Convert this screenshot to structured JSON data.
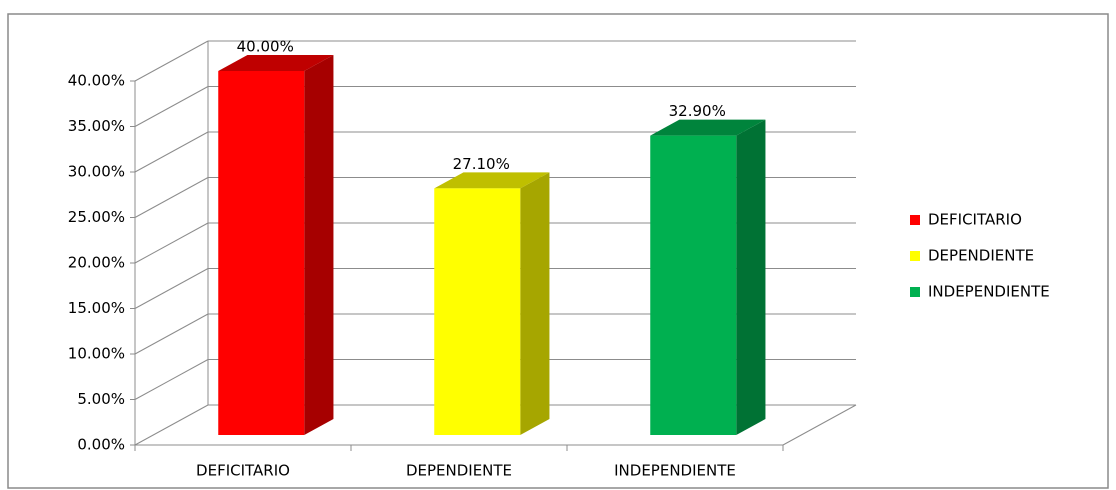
{
  "chart_data": {
    "type": "bar3d",
    "categories": [
      "DEFICITARIO",
      "DEPENDIENTE",
      "INDEPENDIENTE"
    ],
    "values": [
      40,
      27.1,
      32.9
    ],
    "value_labels": [
      "40.00%",
      "27.10%",
      "32.90%"
    ],
    "colors": [
      "#ff0000",
      "#ffff00",
      "#00b050"
    ],
    "ylim": [
      0,
      40
    ],
    "yticks": [
      {
        "value": 0,
        "label": "0.00%"
      },
      {
        "value": 5,
        "label": "5.00%"
      },
      {
        "value": 10,
        "label": "10.00%"
      },
      {
        "value": 15,
        "label": "15.00%"
      },
      {
        "value": 20,
        "label": "20.00%"
      },
      {
        "value": 25,
        "label": "25.00%"
      },
      {
        "value": 30,
        "label": "30.00%"
      },
      {
        "value": 35,
        "label": "35.00%"
      },
      {
        "value": 40,
        "label": "40.00%"
      }
    ],
    "grid": true,
    "legend": "right"
  }
}
